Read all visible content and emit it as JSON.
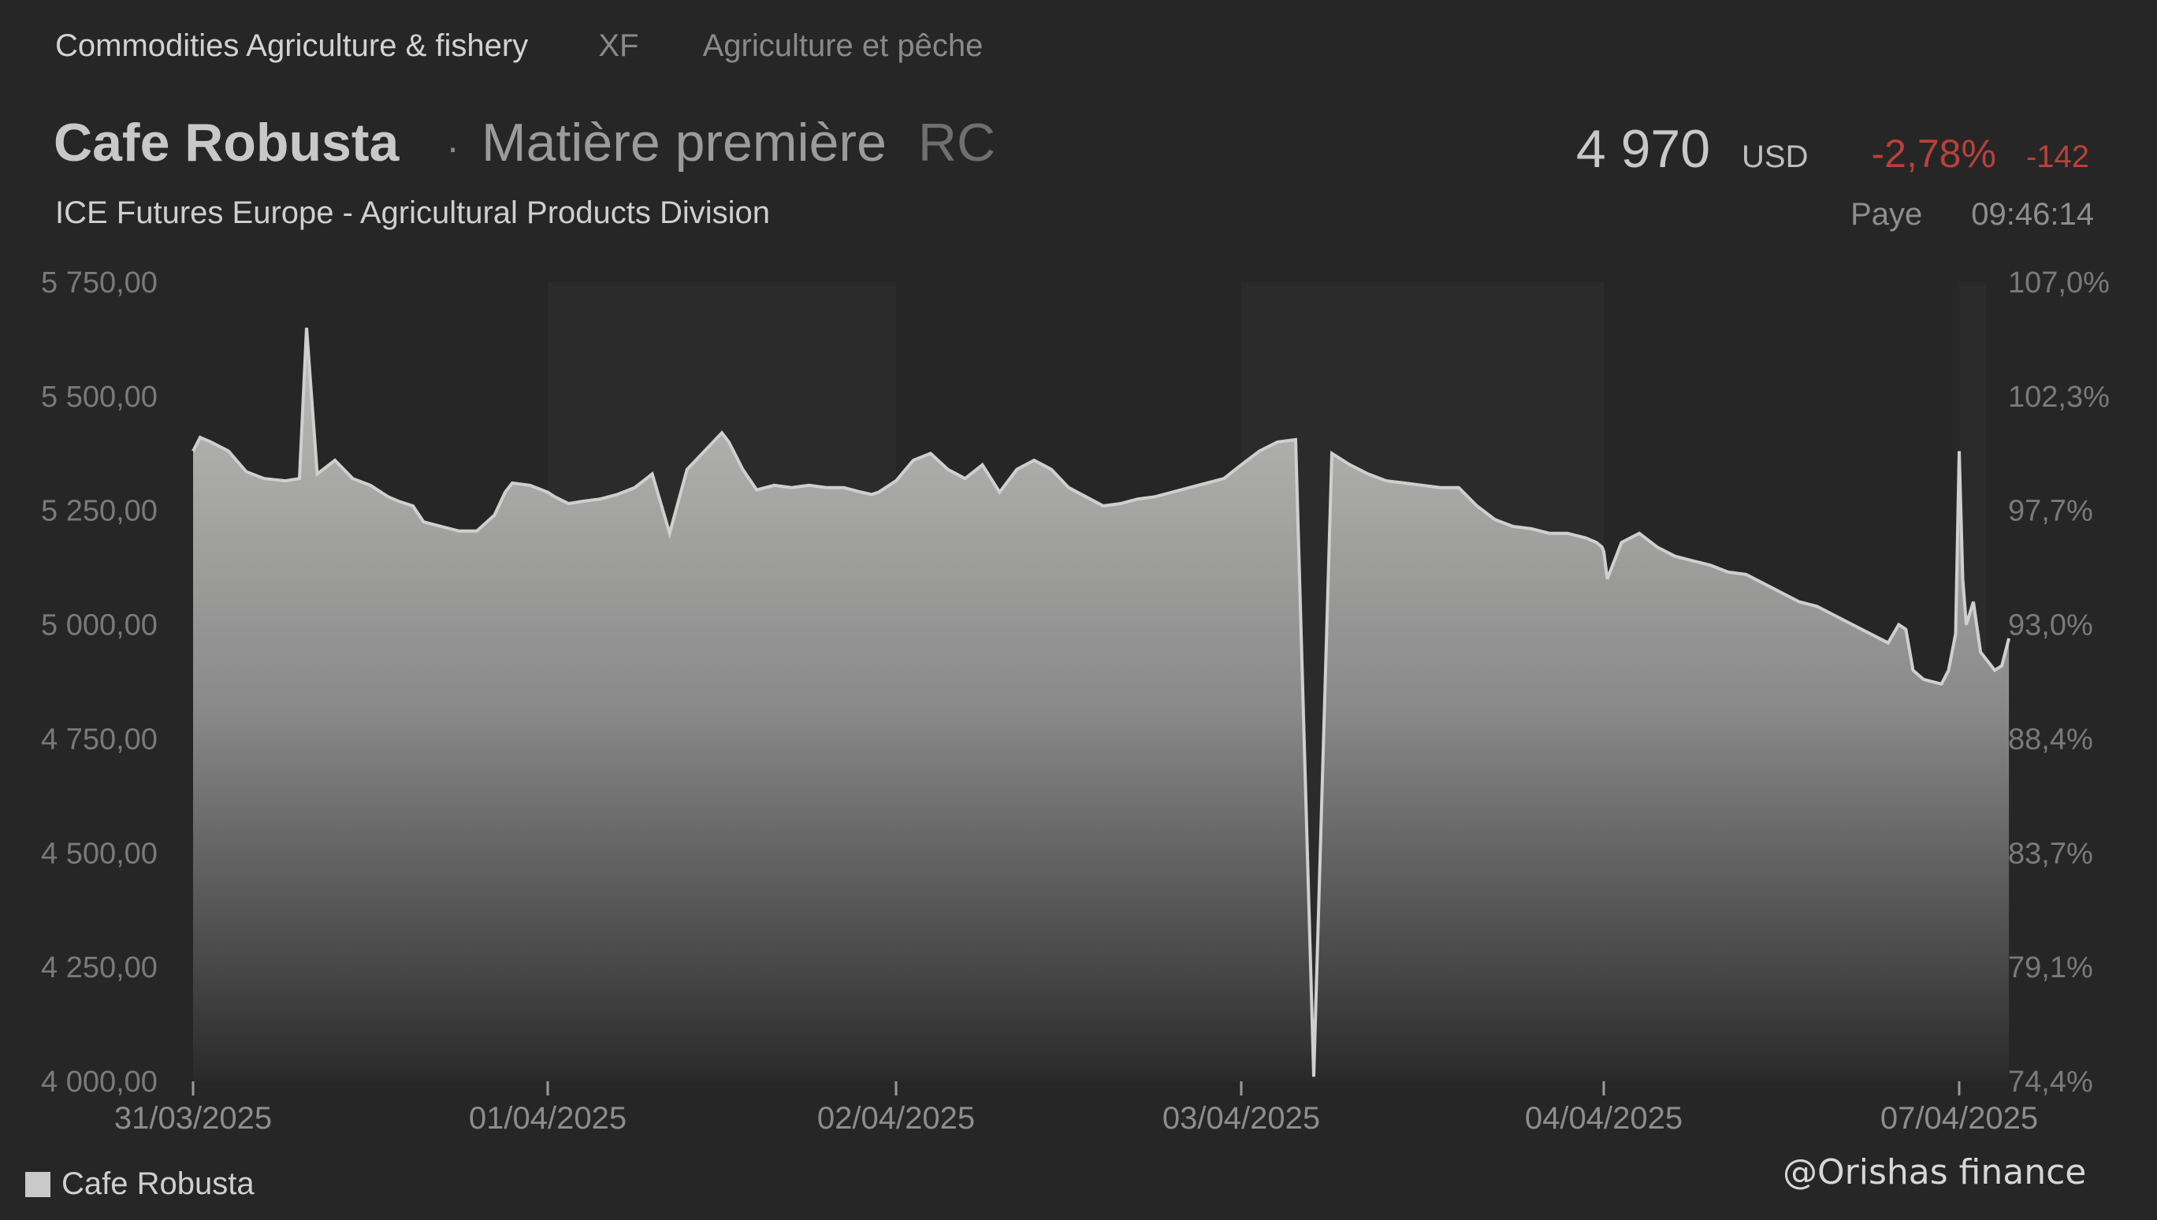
{
  "header": {
    "breadcrumb_main": "Commodities Agriculture & fishery",
    "breadcrumb_code": "XF",
    "breadcrumb_fr": "Agriculture et pêche",
    "name": "Cafe Robusta",
    "separator": "·",
    "type": "Matière première",
    "code": "RC",
    "exchange": "ICE Futures Europe - Agricultural Products Division"
  },
  "quote": {
    "price": "4 970",
    "currency": "USD",
    "change_pct": "-2,78%",
    "change_abs": "-142",
    "status": "Paye",
    "time": "09:46:14"
  },
  "legend": {
    "label": "Cafe Robusta"
  },
  "watermark": "@Orishas finance",
  "colors": {
    "background": "#262626",
    "negative": "#b8413a",
    "series": "#cfcfcf"
  },
  "chart_data": {
    "type": "area",
    "title": "",
    "xlabel": "",
    "ylabel": "",
    "ylim": [
      4000,
      5750
    ],
    "y_ticks": [
      "5 750,00",
      "5 500,00",
      "5 250,00",
      "5 000,00",
      "4 750,00",
      "4 500,00",
      "4 250,00",
      "4 000,00"
    ],
    "y2_ticks": [
      "107,0%",
      "102,3%",
      "97,7%",
      "93,0%",
      "88,4%",
      "83,7%",
      "79,1%",
      "74,4%"
    ],
    "x_ticks": [
      "31/03/2025",
      "01/04/2025",
      "02/04/2025",
      "03/04/2025",
      "04/04/2025",
      "07/04/2025"
    ],
    "legend_position": "bottom-left",
    "grid": false,
    "series": [
      {
        "name": "Cafe Robusta",
        "x": [
          0.0,
          0.02,
          0.05,
          0.1,
          0.15,
          0.2,
          0.26,
          0.3,
          0.32,
          0.35,
          0.4,
          0.45,
          0.5,
          0.55,
          0.58,
          0.6,
          0.62,
          0.65,
          0.7,
          0.75,
          0.8,
          0.85,
          0.88,
          0.9,
          0.95,
          1.0,
          1.02,
          1.06,
          1.1,
          1.15,
          1.2,
          1.25,
          1.3,
          1.35,
          1.4,
          1.45,
          1.5,
          1.52,
          1.54,
          1.56,
          1.6,
          1.65,
          1.7,
          1.75,
          1.8,
          1.85,
          1.9,
          1.93,
          1.95,
          2.0,
          2.05,
          2.1,
          2.15,
          2.2,
          2.25,
          2.3,
          2.35,
          2.4,
          2.45,
          2.5,
          2.55,
          2.6,
          2.65,
          2.7,
          2.75,
          2.8,
          2.85,
          2.9,
          2.95,
          3.0,
          3.05,
          3.1,
          3.15,
          3.2,
          3.25,
          3.3,
          3.35,
          3.4,
          3.45,
          3.5,
          3.55,
          3.6,
          3.65,
          3.7,
          3.75,
          3.8,
          3.85,
          3.9,
          3.95,
          3.98,
          3.995,
          4.0,
          4.01,
          4.05,
          4.1,
          4.15,
          4.2,
          4.25,
          4.3,
          4.35,
          4.4,
          4.45,
          4.5,
          4.55,
          4.6,
          4.65,
          4.7,
          4.75,
          4.8,
          4.83,
          4.85,
          4.87,
          4.9,
          4.95,
          4.97,
          4.99,
          5.0,
          5.01,
          5.02,
          5.04,
          5.06,
          5.08,
          5.1,
          5.12,
          5.14
        ],
        "values": [
          5380,
          5410,
          5400,
          5380,
          5335,
          5320,
          5315,
          5320,
          5650,
          5330,
          5360,
          5320,
          5305,
          5280,
          5270,
          5265,
          5260,
          5225,
          5215,
          5205,
          5205,
          5240,
          5290,
          5310,
          5305,
          5290,
          5280,
          5265,
          5270,
          5275,
          5285,
          5300,
          5330,
          5200,
          5340,
          5380,
          5420,
          5400,
          5370,
          5340,
          5295,
          5305,
          5300,
          5305,
          5300,
          5300,
          5290,
          5285,
          5290,
          5315,
          5360,
          5375,
          5340,
          5320,
          5350,
          5290,
          5340,
          5360,
          5340,
          5300,
          5280,
          5260,
          5265,
          5275,
          5280,
          5290,
          5300,
          5310,
          5320,
          5350,
          5380,
          5400,
          5405,
          4010,
          5375,
          5350,
          5330,
          5315,
          5310,
          5305,
          5300,
          5300,
          5260,
          5230,
          5215,
          5210,
          5200,
          5200,
          5190,
          5180,
          5170,
          5160,
          5100,
          5180,
          5200,
          5170,
          5150,
          5140,
          5130,
          5115,
          5110,
          5090,
          5070,
          5050,
          5040,
          5020,
          5000,
          4980,
          4960,
          5000,
          4990,
          4900,
          4880,
          4870,
          4900,
          4980,
          5380,
          5100,
          5000,
          5050,
          4940,
          4920,
          4900,
          4910,
          4970
        ]
      }
    ]
  }
}
